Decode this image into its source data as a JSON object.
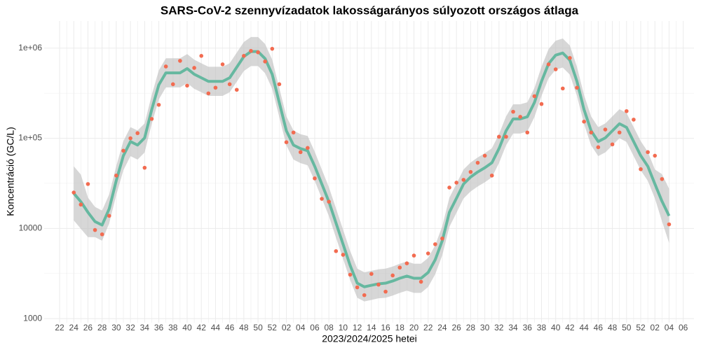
{
  "chart_data": {
    "type": "line",
    "title": "SARS-CoV-2 szennyvízadatok lakosságarányos súlyozott országos átlaga",
    "x_label": "2023/2024/2025 hetei",
    "y_label": "Koncentráció (GC/L)",
    "log_scale": true,
    "grid": true,
    "point_color": "#f26b50",
    "line_color": "#66b8a0",
    "band_color": "#bdbdbd",
    "ylim": [
      900,
      2000000
    ],
    "yticks": [
      1000,
      10000,
      {
        "value": 100000,
        "label": "1e+05"
      },
      {
        "value": 1000000,
        "label": "1e+06"
      }
    ],
    "categories": [
      "22",
      null,
      "24",
      null,
      "26",
      null,
      "28",
      null,
      "30",
      null,
      "32",
      null,
      "34",
      null,
      "36",
      null,
      "38",
      null,
      "40",
      null,
      "42",
      null,
      "44",
      null,
      "46",
      null,
      "48",
      null,
      "50",
      null,
      "52",
      null,
      "02",
      null,
      "04",
      null,
      "06",
      null,
      "08",
      null,
      "10",
      null,
      "12",
      null,
      "14",
      null,
      "16",
      null,
      "18",
      null,
      "20",
      null,
      "22",
      null,
      "24",
      null,
      "26",
      null,
      "28",
      null,
      "30",
      null,
      "32",
      null,
      "34",
      null,
      "36",
      null,
      "38",
      null,
      "40",
      null,
      "42",
      null,
      "44",
      null,
      "46",
      null,
      "48",
      null,
      "50",
      null,
      "52",
      null,
      "02",
      null,
      "04",
      null,
      "06"
    ],
    "values": [
      null,
      null,
      25000,
      18400,
      31100,
      9600,
      8600,
      13800,
      38600,
      72800,
      100000,
      114000,
      47100,
      164000,
      235000,
      626000,
      398000,
      723000,
      384000,
      604000,
      821000,
      315000,
      364000,
      661000,
      398000,
      345000,
      821000,
      932000,
      899000,
      711000,
      984000,
      398000,
      90400,
      116000,
      70200,
      78200,
      35900,
      21300,
      19800,
      5600,
      5100,
      3070,
      2220,
      1820,
      3130,
      2380,
      1990,
      3010,
      3680,
      4100,
      5000,
      2560,
      5280,
      6680,
      7730,
      28400,
      32200,
      34600,
      42300,
      53500,
      64100,
      38600,
      104000,
      104000,
      197000,
      173000,
      116000,
      293000,
      240000,
      661000,
      582000,
      357000,
      778000,
      364000,
      153000,
      116000,
      79600,
      125000,
      85600,
      116000,
      200000,
      161000,
      45400,
      70200,
      64100,
      35300,
      11100,
      null,
      null
    ],
    "fit": [
      null,
      null,
      24500,
      19800,
      15100,
      11900,
      10900,
      16500,
      34000,
      64100,
      92000,
      84100,
      101000,
      208000,
      391000,
      532000,
      532000,
      532000,
      593000,
      513000,
      469000,
      428000,
      428000,
      428000,
      469000,
      615000,
      807000,
      916000,
      916000,
      764000,
      513000,
      249000,
      121000,
      84100,
      76800,
      72800,
      48900,
      31100,
      19800,
      11500,
      6680,
      3880,
      2470,
      2250,
      2340,
      2430,
      2470,
      2610,
      2800,
      2960,
      2800,
      2800,
      3240,
      4490,
      7310,
      15100,
      21600,
      31100,
      37200,
      42300,
      47100,
      53500,
      76800,
      121000,
      164000,
      164000,
      173000,
      249000,
      428000,
      673000,
      836000,
      883000,
      736000,
      428000,
      208000,
      121000,
      92000,
      101000,
      121000,
      145000,
      132000,
      92000,
      64100,
      48900,
      31100,
      20000,
      13800,
      null,
      null
    ],
    "fit_lower": [
      null,
      null,
      12300,
      9900,
      8000,
      8000,
      7300,
      11400,
      23500,
      44200,
      63500,
      58000,
      69700,
      144000,
      270000,
      367000,
      367000,
      367000,
      409000,
      354000,
      324000,
      295000,
      295000,
      295000,
      324000,
      424000,
      557000,
      632000,
      632000,
      527000,
      354000,
      172000,
      83500,
      58000,
      53000,
      50200,
      33700,
      21500,
      13700,
      7900,
      4600,
      2680,
      1700,
      1550,
      1610,
      1680,
      1700,
      1800,
      1930,
      2040,
      1930,
      1930,
      2240,
      3100,
      5040,
      10400,
      14900,
      21500,
      25700,
      29200,
      32500,
      36900,
      53000,
      83500,
      113000,
      113000,
      119000,
      172000,
      295000,
      464000,
      577000,
      609000,
      508000,
      295000,
      144000,
      83500,
      63500,
      69700,
      83500,
      100000,
      91100,
      63500,
      44200,
      33700,
      21500,
      12000,
      6900,
      null,
      null
    ],
    "fit_upper": [
      null,
      null,
      49000,
      39600,
      22000,
      17300,
      15800,
      23900,
      49300,
      92900,
      133000,
      122000,
      146000,
      302000,
      567000,
      771000,
      771000,
      771000,
      860000,
      744000,
      680000,
      621000,
      621000,
      621000,
      680000,
      892000,
      1170000,
      1330000,
      1330000,
      1110000,
      744000,
      361000,
      175000,
      122000,
      111000,
      106000,
      70900,
      45100,
      28700,
      16700,
      9690,
      5630,
      3580,
      3260,
      3390,
      3520,
      3580,
      3780,
      4060,
      4290,
      4060,
      4060,
      4700,
      6510,
      10600,
      21900,
      31300,
      45100,
      53900,
      61300,
      68300,
      77600,
      111000,
      175000,
      238000,
      238000,
      251000,
      361000,
      621000,
      976000,
      1210000,
      1280000,
      1070000,
      621000,
      302000,
      175000,
      133000,
      146000,
      175000,
      210000,
      191000,
      133000,
      92900,
      70900,
      45100,
      40000,
      27600,
      null,
      null
    ]
  }
}
